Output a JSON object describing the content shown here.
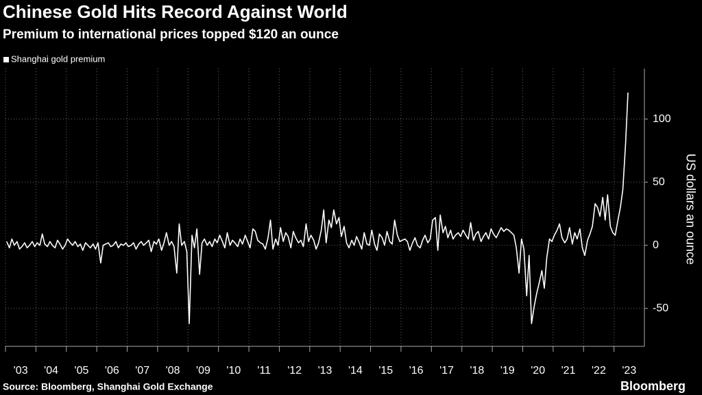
{
  "chart_data": {
    "type": "line",
    "title": "Chinese Gold Hits Record Against World",
    "subtitle": "Premium to international prices topped $120 an ounce",
    "y_label": "US dollars an ounce",
    "source": "Source: Bloomberg, Shanghai Gold Exchange",
    "brand": "Bloomberg",
    "legend": "top-left",
    "grid": true,
    "xlim": [
      2003,
      2024
    ],
    "ylim": [
      -80,
      140
    ],
    "yticks": [
      -50,
      0,
      50,
      100
    ],
    "xticks": [
      {
        "value": 2003,
        "label": "'03"
      },
      {
        "value": 2004,
        "label": "'04"
      },
      {
        "value": 2005,
        "label": "'05"
      },
      {
        "value": 2006,
        "label": "'06"
      },
      {
        "value": 2007,
        "label": "'07"
      },
      {
        "value": 2008,
        "label": "'08"
      },
      {
        "value": 2009,
        "label": "'09"
      },
      {
        "value": 2010,
        "label": "'10"
      },
      {
        "value": 2011,
        "label": "'11"
      },
      {
        "value": 2012,
        "label": "'12"
      },
      {
        "value": 2013,
        "label": "'13"
      },
      {
        "value": 2014,
        "label": "'14"
      },
      {
        "value": 2015,
        "label": "'15"
      },
      {
        "value": 2016,
        "label": "'16"
      },
      {
        "value": 2017,
        "label": "'17"
      },
      {
        "value": 2018,
        "label": "'18"
      },
      {
        "value": 2019,
        "label": "'19"
      },
      {
        "value": 2020,
        "label": "'20"
      },
      {
        "value": 2021,
        "label": "'21"
      },
      {
        "value": 2022,
        "label": "'22"
      },
      {
        "value": 2023,
        "label": "'23"
      }
    ],
    "x": [
      2003.04,
      2003.13,
      2003.21,
      2003.29,
      2003.38,
      2003.46,
      2003.54,
      2003.63,
      2003.71,
      2003.79,
      2003.88,
      2003.96,
      2004.04,
      2004.13,
      2004.21,
      2004.29,
      2004.38,
      2004.46,
      2004.54,
      2004.63,
      2004.71,
      2004.79,
      2004.88,
      2004.96,
      2005.04,
      2005.13,
      2005.21,
      2005.29,
      2005.38,
      2005.46,
      2005.54,
      2005.63,
      2005.71,
      2005.79,
      2005.88,
      2005.96,
      2006.04,
      2006.13,
      2006.21,
      2006.29,
      2006.38,
      2006.46,
      2006.54,
      2006.63,
      2006.71,
      2006.79,
      2006.88,
      2006.96,
      2007.04,
      2007.13,
      2007.21,
      2007.29,
      2007.38,
      2007.46,
      2007.54,
      2007.63,
      2007.71,
      2007.79,
      2007.88,
      2007.96,
      2008.04,
      2008.13,
      2008.21,
      2008.29,
      2008.38,
      2008.46,
      2008.54,
      2008.63,
      2008.71,
      2008.79,
      2008.88,
      2008.96,
      2009.04,
      2009.13,
      2009.21,
      2009.29,
      2009.38,
      2009.46,
      2009.54,
      2009.63,
      2009.71,
      2009.79,
      2009.88,
      2009.96,
      2010.04,
      2010.13,
      2010.21,
      2010.29,
      2010.38,
      2010.46,
      2010.54,
      2010.63,
      2010.71,
      2010.79,
      2010.88,
      2010.96,
      2011.04,
      2011.13,
      2011.21,
      2011.29,
      2011.38,
      2011.46,
      2011.54,
      2011.63,
      2011.71,
      2011.79,
      2011.88,
      2011.96,
      2012.04,
      2012.13,
      2012.21,
      2012.29,
      2012.38,
      2012.46,
      2012.54,
      2012.63,
      2012.71,
      2012.79,
      2012.88,
      2012.96,
      2013.04,
      2013.13,
      2013.21,
      2013.29,
      2013.38,
      2013.46,
      2013.54,
      2013.63,
      2013.71,
      2013.79,
      2013.88,
      2013.96,
      2014.04,
      2014.13,
      2014.21,
      2014.29,
      2014.38,
      2014.46,
      2014.54,
      2014.63,
      2014.71,
      2014.79,
      2014.88,
      2014.96,
      2015.04,
      2015.13,
      2015.21,
      2015.29,
      2015.38,
      2015.46,
      2015.54,
      2015.63,
      2015.71,
      2015.79,
      2015.88,
      2015.96,
      2016.04,
      2016.13,
      2016.21,
      2016.29,
      2016.38,
      2016.46,
      2016.54,
      2016.63,
      2016.71,
      2016.79,
      2016.88,
      2016.96,
      2017.04,
      2017.13,
      2017.21,
      2017.29,
      2017.38,
      2017.46,
      2017.54,
      2017.63,
      2017.71,
      2017.79,
      2017.88,
      2017.96,
      2018.04,
      2018.13,
      2018.21,
      2018.29,
      2018.38,
      2018.46,
      2018.54,
      2018.63,
      2018.71,
      2018.79,
      2018.88,
      2018.96,
      2019.04,
      2019.13,
      2019.21,
      2019.29,
      2019.38,
      2019.46,
      2019.54,
      2019.63,
      2019.71,
      2019.79,
      2019.88,
      2019.96,
      2020.04,
      2020.13,
      2020.21,
      2020.29,
      2020.38,
      2020.46,
      2020.54,
      2020.63,
      2020.71,
      2020.79,
      2020.88,
      2020.96,
      2021.04,
      2021.13,
      2021.21,
      2021.29,
      2021.38,
      2021.46,
      2021.54,
      2021.63,
      2021.71,
      2021.79,
      2021.88,
      2021.96,
      2022.04,
      2022.13,
      2022.21,
      2022.29,
      2022.38,
      2022.46,
      2022.54,
      2022.63,
      2022.71,
      2022.79,
      2022.88,
      2022.96,
      2023.04,
      2023.13,
      2023.21,
      2023.29,
      2023.38,
      2023.46
    ],
    "series": [
      {
        "name": "Shanghai gold premium",
        "color": "#ffffff",
        "values": [
          3,
          -2,
          5,
          0,
          3,
          -3,
          -1,
          2,
          -2,
          0,
          3,
          -1,
          2,
          0,
          9,
          1,
          -1,
          3,
          0,
          -2,
          4,
          1,
          -3,
          0,
          5,
          2,
          0,
          3,
          -1,
          1,
          -4,
          2,
          0,
          -2,
          1,
          -3,
          2,
          -14,
          0,
          1,
          2,
          -1,
          0,
          3,
          -2,
          1,
          0,
          2,
          -1,
          0,
          2,
          -3,
          1,
          3,
          0,
          2,
          4,
          -5,
          3,
          1,
          5,
          -4,
          2,
          10,
          0,
          3,
          -1,
          -22,
          17,
          0,
          3,
          -5,
          -62,
          8,
          -2,
          13,
          -23,
          2,
          5,
          0,
          3,
          -1,
          5,
          2,
          8,
          3,
          -2,
          10,
          0,
          4,
          2,
          -1,
          5,
          1,
          8,
          3,
          -2,
          13,
          11,
          4,
          2,
          1,
          -3,
          6,
          20,
          -3,
          5,
          0,
          14,
          3,
          10,
          7,
          -2,
          11,
          6,
          2,
          4,
          -1,
          17,
          3,
          8,
          4,
          -3,
          2,
          12,
          28,
          2,
          20,
          14,
          28,
          17,
          22,
          7,
          15,
          2,
          -2,
          4,
          0,
          7,
          2,
          -3,
          10,
          1,
          0,
          12,
          1,
          -4,
          9,
          6,
          0,
          11,
          3,
          1,
          20,
          8,
          3,
          4,
          5,
          3,
          -4,
          2,
          6,
          0,
          -2,
          4,
          8,
          2,
          5,
          20,
          22,
          -4,
          24,
          10,
          15,
          6,
          12,
          5,
          8,
          10,
          7,
          12,
          8,
          5,
          18,
          4,
          9,
          11,
          3,
          7,
          10,
          5,
          13,
          9,
          6,
          10,
          14,
          11,
          13,
          12,
          10,
          8,
          -2,
          -22,
          5,
          -3,
          -40,
          -8,
          -62,
          -48,
          -38,
          -30,
          -20,
          -34,
          -10,
          5,
          3,
          8,
          12,
          17,
          6,
          2,
          5,
          14,
          1,
          10,
          5,
          13,
          -2,
          -8,
          4,
          9,
          15,
          33,
          30,
          23,
          38,
          20,
          40,
          15,
          10,
          8,
          20,
          30,
          44,
          80,
          121
        ]
      }
    ]
  }
}
